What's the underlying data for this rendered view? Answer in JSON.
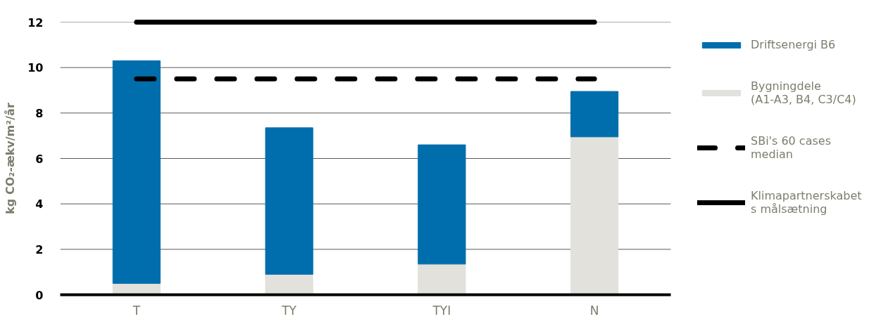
{
  "chart_data": {
    "type": "bar",
    "stacked": true,
    "ylabel": "kg CO₂-ækv/m²/år",
    "categories": [
      "T",
      "TY",
      "TYI",
      "N"
    ],
    "series": [
      {
        "name": "Bygningdele (A1-A3, B4, C3/C4)",
        "color": "#e2e1dc",
        "values": [
          0.5,
          0.9,
          1.35,
          6.95
        ]
      },
      {
        "name": "Driftsenergi B6",
        "color": "#006eac",
        "values": [
          9.8,
          6.45,
          5.25,
          2.0
        ]
      },
      {
        "name": "SBi's 60 cases median",
        "type": "line",
        "line_style": "dashed",
        "color": "#000000",
        "values": [
          9.5,
          9.5,
          9.5,
          9.5
        ]
      },
      {
        "name": "Klimapartnerskabets målsætning",
        "type": "line",
        "line_style": "solid",
        "color": "#000000",
        "values": [
          12,
          12,
          12,
          12
        ]
      }
    ],
    "ylim": [
      0,
      12
    ],
    "yticks": [
      0,
      2,
      4,
      6,
      8,
      10,
      12
    ],
    "grid": "y",
    "legend": "right"
  }
}
